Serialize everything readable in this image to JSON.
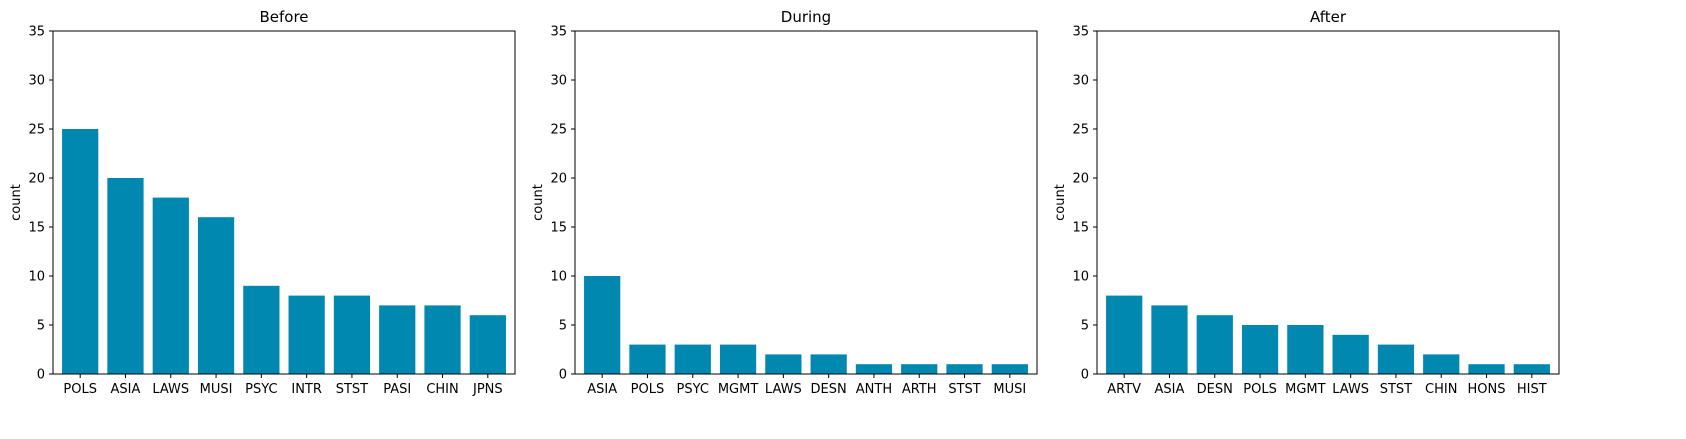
{
  "figure": {
    "bar_color": "#0088B0",
    "axis_color": "#000000",
    "background": "#ffffff"
  },
  "chart_data": [
    {
      "type": "bar",
      "title": "Before",
      "xlabel": "",
      "ylabel": "count",
      "ylim": [
        0,
        35
      ],
      "yticks": [
        0,
        5,
        10,
        15,
        20,
        25,
        30,
        35
      ],
      "grid": false,
      "categories": [
        "POLS",
        "ASIA",
        "LAWS",
        "MUSI",
        "PSYC",
        "INTR",
        "STST",
        "PASI",
        "CHIN",
        "JPNS"
      ],
      "values": [
        25,
        20,
        18,
        16,
        9,
        8,
        8,
        7,
        7,
        6
      ]
    },
    {
      "type": "bar",
      "title": "During",
      "xlabel": "",
      "ylabel": "count",
      "ylim": [
        0,
        35
      ],
      "yticks": [
        0,
        5,
        10,
        15,
        20,
        25,
        30,
        35
      ],
      "grid": false,
      "categories": [
        "ASIA",
        "POLS",
        "PSYC",
        "MGMT",
        "LAWS",
        "DESN",
        "ANTH",
        "ARTH",
        "STST",
        "MUSI"
      ],
      "values": [
        10,
        3,
        3,
        3,
        2,
        2,
        1,
        1,
        1,
        1
      ]
    },
    {
      "type": "bar",
      "title": "After",
      "xlabel": "",
      "ylabel": "count",
      "ylim": [
        0,
        35
      ],
      "yticks": [
        0,
        5,
        10,
        15,
        20,
        25,
        30,
        35
      ],
      "grid": false,
      "categories": [
        "ARTV",
        "ASIA",
        "DESN",
        "POLS",
        "MGMT",
        "LAWS",
        "STST",
        "CHIN",
        "HONS",
        "HIST"
      ],
      "values": [
        8,
        7,
        6,
        5,
        5,
        4,
        3,
        2,
        1,
        1
      ]
    }
  ]
}
